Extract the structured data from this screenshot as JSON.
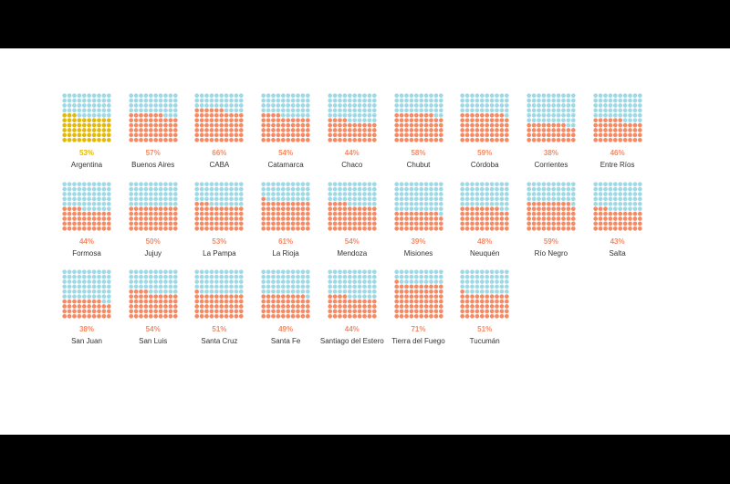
{
  "chart_data": {
    "type": "waffle",
    "grid": {
      "rows": 10,
      "cols": 10
    },
    "colors": {
      "background": "#9fd9e6",
      "filled": "#f58a64",
      "highlight": "#e3ba0b",
      "label": "#f58a64",
      "highlight_label": "#e3ba0b"
    },
    "highlight": "Argentina",
    "items": [
      {
        "name": "Argentina",
        "value": 53,
        "label": "53%"
      },
      {
        "name": "Buenos Aires",
        "value": 57,
        "label": "57%"
      },
      {
        "name": "CABA",
        "value": 66,
        "label": "66%"
      },
      {
        "name": "Catamarca",
        "value": 54,
        "label": "54%"
      },
      {
        "name": "Chaco",
        "value": 44,
        "label": "44%"
      },
      {
        "name": "Chubut",
        "value": 58,
        "label": "58%"
      },
      {
        "name": "Córdoba",
        "value": 59,
        "label": "59%"
      },
      {
        "name": "Corrientes",
        "value": 38,
        "label": "38%"
      },
      {
        "name": "Entre Ríos",
        "value": 46,
        "label": "46%"
      },
      {
        "name": "Formosa",
        "value": 44,
        "label": "44%"
      },
      {
        "name": "Jujuy",
        "value": 50,
        "label": "50%"
      },
      {
        "name": "La Pampa",
        "value": 53,
        "label": "53%"
      },
      {
        "name": "La Rioja",
        "value": 61,
        "label": "61%"
      },
      {
        "name": "Mendoza",
        "value": 54,
        "label": "54%"
      },
      {
        "name": "Misiones",
        "value": 39,
        "label": "39%"
      },
      {
        "name": "Neuquén",
        "value": 48,
        "label": "48%"
      },
      {
        "name": "Río Negro",
        "value": 59,
        "label": "59%"
      },
      {
        "name": "Salta",
        "value": 43,
        "label": "43%"
      },
      {
        "name": "San Juan",
        "value": 38,
        "label": "38%"
      },
      {
        "name": "San Luis",
        "value": 54,
        "label": "54%"
      },
      {
        "name": "Santa Cruz",
        "value": 51,
        "label": "51%"
      },
      {
        "name": "Santa Fe",
        "value": 49,
        "label": "49%"
      },
      {
        "name": "Santiago del Estero",
        "value": 44,
        "label": "44%"
      },
      {
        "name": "Tierra del Fuego",
        "value": 71,
        "label": "71%"
      },
      {
        "name": "Tucumán",
        "value": 51,
        "label": "51%"
      }
    ]
  }
}
